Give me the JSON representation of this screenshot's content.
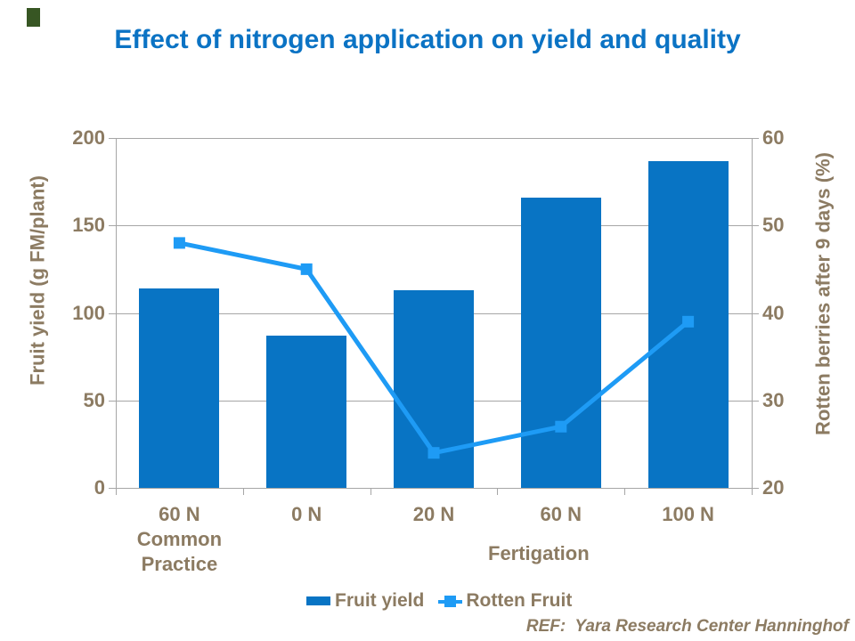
{
  "slide": {
    "title": "Effect of nitrogen application on yield and quality",
    "footer_ref": "REF:  Yara Research Center Hanninghof",
    "brand_mark_color": "#375623"
  },
  "colors": {
    "title_blue": "#0B73C4",
    "bar_blue": "#0874C4",
    "line_blue": "#1E9BF5",
    "axis_text_brown": "#8C7B62",
    "grid_gray": "#A6A6A6"
  },
  "chart_data": {
    "type": "bar",
    "subtype": "bar-line-combo",
    "categories": [
      "60 N\nCommon\nPractice",
      "0 N",
      "20 N",
      "60 N",
      "100 N"
    ],
    "group_label": "Fertigation",
    "series": [
      {
        "name": "Fruit yield",
        "type": "bar",
        "axis": "left",
        "values": [
          114,
          87,
          113,
          166,
          187
        ]
      },
      {
        "name": "Rotten Fruit",
        "type": "line",
        "axis": "right",
        "values": [
          48,
          45,
          24,
          27,
          39
        ]
      }
    ],
    "left_axis": {
      "title": "Fruit yield (g FM/plant)",
      "min": 0,
      "max": 200,
      "ticks": [
        "200",
        "150",
        "100",
        "50",
        "0"
      ]
    },
    "right_axis": {
      "title": "Rotten berries after 9 days (%)",
      "min": 20,
      "max": 60,
      "ticks": [
        "60",
        "50",
        "40",
        "30",
        "20"
      ]
    },
    "legend": [
      "Fruit yield",
      "Rotten Fruit"
    ],
    "grid": true,
    "legend_position": "bottom"
  }
}
